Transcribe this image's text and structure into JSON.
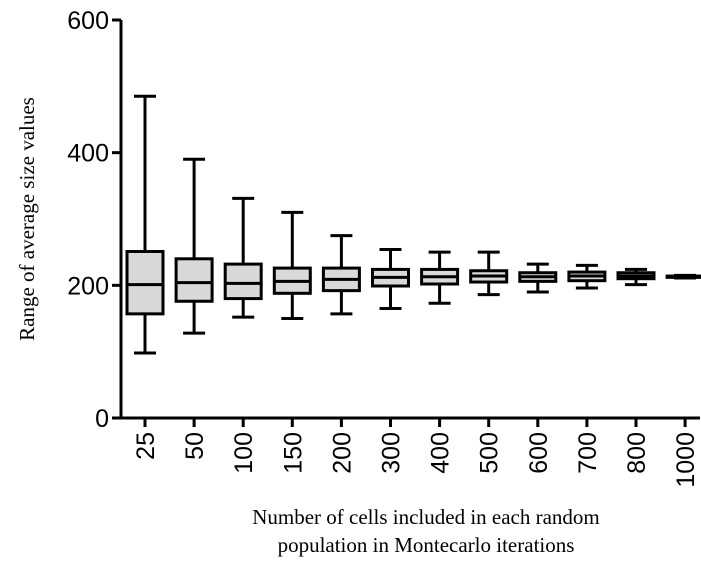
{
  "chart_data": {
    "type": "boxplot",
    "title": "",
    "xlabel_line1": "Number of cells included in each random",
    "xlabel_line2": "population in Montecarlo iterations",
    "ylabel": "Range of average size values",
    "ylim": [
      0,
      600
    ],
    "yticks": [
      0,
      200,
      400,
      600
    ],
    "grid": false,
    "categories": [
      "25",
      "50",
      "100",
      "150",
      "200",
      "300",
      "400",
      "500",
      "600",
      "700",
      "800",
      "1000"
    ],
    "boxes": [
      {
        "min": 98,
        "q1": 157,
        "median": 201,
        "q3": 251,
        "max": 485
      },
      {
        "min": 128,
        "q1": 176,
        "median": 204,
        "q3": 240,
        "max": 390
      },
      {
        "min": 152,
        "q1": 180,
        "median": 203,
        "q3": 232,
        "max": 331
      },
      {
        "min": 150,
        "q1": 188,
        "median": 206,
        "q3": 226,
        "max": 310
      },
      {
        "min": 157,
        "q1": 192,
        "median": 209,
        "q3": 226,
        "max": 275
      },
      {
        "min": 165,
        "q1": 199,
        "median": 212,
        "q3": 224,
        "max": 254
      },
      {
        "min": 173,
        "q1": 202,
        "median": 213,
        "q3": 224,
        "max": 250
      },
      {
        "min": 186,
        "q1": 205,
        "median": 214,
        "q3": 222,
        "max": 250
      },
      {
        "min": 190,
        "q1": 206,
        "median": 213,
        "q3": 219,
        "max": 232
      },
      {
        "min": 196,
        "q1": 207,
        "median": 214,
        "q3": 220,
        "max": 230
      },
      {
        "min": 201,
        "q1": 210,
        "median": 214,
        "q3": 219,
        "max": 224
      },
      {
        "min": 211,
        "q1": 212,
        "median": 213,
        "q3": 214,
        "max": 215
      }
    ],
    "box_fill": "#d9d9d9",
    "stroke_color": "#000000"
  }
}
